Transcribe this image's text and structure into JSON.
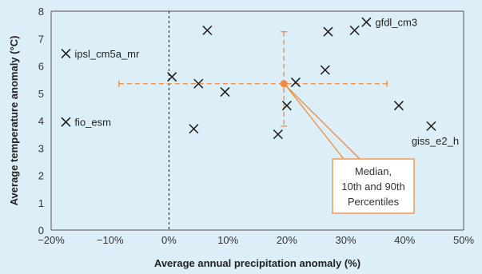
{
  "chart_data": {
    "type": "scatter",
    "title": "",
    "xlabel": "Average annual precipitation anomaly (%)",
    "ylabel": "Average temperature anomaly (°C)",
    "xlim": [
      -20,
      50
    ],
    "ylim": [
      0,
      8
    ],
    "xticks": [
      -20,
      -10,
      0,
      10,
      20,
      30,
      40,
      50
    ],
    "xtick_labels": [
      "−20%",
      "−10%",
      "0%",
      "10%",
      "20%",
      "30%",
      "40%",
      "50%"
    ],
    "yticks": [
      0,
      1,
      2,
      3,
      4,
      5,
      6,
      7,
      8
    ],
    "ytick_labels": [
      "0",
      "1",
      "2",
      "3",
      "4",
      "5",
      "6",
      "7",
      "8"
    ],
    "grid": false,
    "zero_line_x": 0,
    "points": [
      {
        "x": -17.5,
        "y": 6.45,
        "label": "ipsl_cm5a_mr"
      },
      {
        "x": -17.5,
        "y": 3.95,
        "label": "fio_esm"
      },
      {
        "x": 0.5,
        "y": 5.6,
        "label": ""
      },
      {
        "x": 4.2,
        "y": 3.7,
        "label": ""
      },
      {
        "x": 5.0,
        "y": 5.35,
        "label": ""
      },
      {
        "x": 6.5,
        "y": 7.3,
        "label": ""
      },
      {
        "x": 9.5,
        "y": 5.05,
        "label": ""
      },
      {
        "x": 18.5,
        "y": 3.5,
        "label": ""
      },
      {
        "x": 20.0,
        "y": 4.55,
        "label": ""
      },
      {
        "x": 21.5,
        "y": 5.4,
        "label": ""
      },
      {
        "x": 26.5,
        "y": 5.85,
        "label": ""
      },
      {
        "x": 27.0,
        "y": 7.25,
        "label": ""
      },
      {
        "x": 31.5,
        "y": 7.3,
        "label": ""
      },
      {
        "x": 33.5,
        "y": 7.6,
        "label": "gfdl_cm3"
      },
      {
        "x": 39.0,
        "y": 4.55,
        "label": ""
      },
      {
        "x": 44.5,
        "y": 3.8,
        "label": "giss_e2_h"
      }
    ],
    "median": {
      "x": 19.5,
      "y": 5.35,
      "x_p10": -8.5,
      "x_p90": 37.0,
      "y_p10": 3.8,
      "y_p90": 7.25
    },
    "callout": {
      "lines": [
        "Median,",
        "10th and 90th",
        "Percentiles"
      ]
    },
    "colors": {
      "background": "#dceef8",
      "marker": "#1a1a1a",
      "median": "#f08a3c",
      "axis": "#555555",
      "zero_line": "#333333",
      "callout_fill": "#ffffff"
    }
  }
}
